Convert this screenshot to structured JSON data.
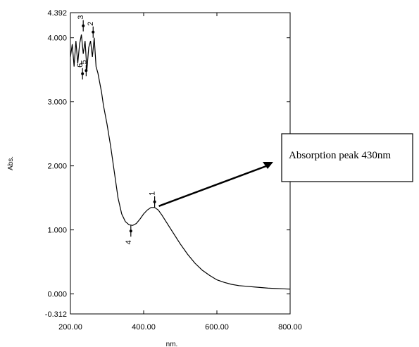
{
  "chart_data": {
    "type": "line",
    "xlabel": "nm.",
    "ylabel": "Abs.",
    "xlim": [
      200,
      800
    ],
    "ylim": [
      -0.312,
      4.392
    ],
    "x_ticks": [
      "200.00",
      "400.00",
      "600.00",
      "800.00"
    ],
    "y_ticks": [
      {
        "value": 4.392,
        "label": "4.392"
      },
      {
        "value": 4.0,
        "label": "4.000"
      },
      {
        "value": 3.0,
        "label": "3.000"
      },
      {
        "value": 2.0,
        "label": "2.000"
      },
      {
        "value": 1.0,
        "label": "1.000"
      },
      {
        "value": 0.0,
        "label": "0.000"
      },
      {
        "value": -0.312,
        "label": "-0.312"
      }
    ],
    "grid": false,
    "series": [
      {
        "x": [
          200,
          205,
          210,
          215,
          220,
          225,
          230,
          235,
          240,
          245,
          250,
          255,
          260,
          265,
          270,
          275,
          280,
          285,
          290,
          300,
          310,
          320,
          330,
          340,
          350,
          360,
          370,
          380,
          390,
          400,
          410,
          420,
          430,
          440,
          450,
          460,
          480,
          500,
          520,
          540,
          560,
          580,
          600,
          620,
          640,
          660,
          680,
          700,
          720,
          740,
          760,
          780,
          800
        ],
        "y": [
          3.7,
          3.9,
          3.55,
          3.95,
          3.6,
          3.9,
          4.05,
          3.75,
          3.95,
          3.5,
          3.85,
          3.95,
          3.7,
          4.0,
          3.55,
          3.45,
          3.3,
          3.15,
          2.95,
          2.65,
          2.3,
          1.9,
          1.5,
          1.25,
          1.13,
          1.08,
          1.07,
          1.1,
          1.17,
          1.25,
          1.31,
          1.35,
          1.35,
          1.31,
          1.23,
          1.14,
          0.96,
          0.78,
          0.62,
          0.48,
          0.37,
          0.29,
          0.22,
          0.18,
          0.15,
          0.13,
          0.12,
          0.11,
          0.1,
          0.09,
          0.085,
          0.08,
          0.075
        ]
      }
    ],
    "peaks": [
      {
        "label": "1",
        "x": 430,
        "y": 1.35
      },
      {
        "label": "2",
        "x": 262,
        "y": 4.0
      },
      {
        "label": "3",
        "x": 235,
        "y": 4.1
      },
      {
        "label": "4",
        "x": 365,
        "y": 1.07
      },
      {
        "label": "5",
        "x": 243,
        "y": 3.4
      },
      {
        "label": "6",
        "x": 233,
        "y": 3.35
      }
    ],
    "annotation": {
      "text": "Absorption peak 430nm",
      "points_to": {
        "x": 430,
        "y": 1.35
      }
    }
  }
}
